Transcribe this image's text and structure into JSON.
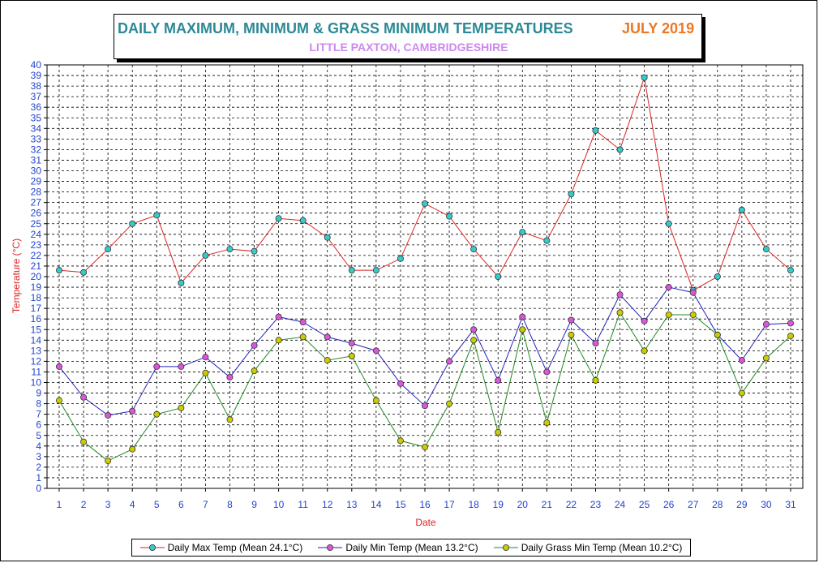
{
  "header": {
    "title": "DAILY MAXIMUM, MINIMUM & GRASS MINIMUM TEMPERATURES",
    "month": "JULY 2019",
    "location": "LITTLE PAXTON, CAMBRIDGESHIRE"
  },
  "colors": {
    "title": "#2b8a95",
    "month": "#ee7722",
    "location": "#cc88ee",
    "axis_text": "#2244cc",
    "axis_label": "#dd2222",
    "max_line": "#dd2222",
    "max_marker": "#33cccc",
    "min_line": "#2222bb",
    "min_marker": "#dd55dd",
    "grass_line": "#228822",
    "grass_marker": "#cccc00"
  },
  "chart_data": {
    "type": "line",
    "xlabel": "Date",
    "ylabel": "Temperature (°C)",
    "ylim": [
      0,
      40
    ],
    "xlim": [
      1,
      31
    ],
    "grid": true,
    "legend": "bottom",
    "x": [
      1,
      2,
      3,
      4,
      5,
      6,
      7,
      8,
      9,
      10,
      11,
      12,
      13,
      14,
      15,
      16,
      17,
      18,
      19,
      20,
      21,
      22,
      23,
      24,
      25,
      26,
      27,
      28,
      29,
      30,
      31
    ],
    "series": [
      {
        "name": "Daily Max Temp (Mean 24.1°C)",
        "values": [
          20.6,
          20.4,
          22.6,
          25.0,
          25.8,
          19.4,
          22.0,
          22.6,
          22.4,
          25.5,
          25.3,
          23.7,
          20.6,
          20.6,
          21.7,
          26.9,
          25.7,
          22.6,
          20.0,
          24.2,
          23.4,
          27.8,
          33.8,
          32.0,
          38.8,
          25.0,
          18.7,
          20.0,
          26.3,
          22.6,
          20.6
        ]
      },
      {
        "name": "Daily Min Temp (Mean 13.2°C)",
        "values": [
          11.5,
          8.6,
          6.9,
          7.3,
          11.5,
          11.5,
          12.4,
          10.5,
          13.5,
          16.2,
          15.7,
          14.3,
          13.7,
          13.0,
          9.9,
          7.8,
          12.0,
          15.0,
          10.2,
          16.2,
          11.0,
          15.9,
          13.7,
          18.3,
          15.8,
          19.0,
          18.5,
          14.5,
          12.1,
          15.5,
          15.6
        ]
      },
      {
        "name": "Daily Grass Min Temp (Mean 10.2°C)",
        "values": [
          8.3,
          4.4,
          2.6,
          3.7,
          7.0,
          7.6,
          10.9,
          6.5,
          11.1,
          14.0,
          14.3,
          12.1,
          12.5,
          8.3,
          4.5,
          3.9,
          8.0,
          14.0,
          5.3,
          15.0,
          6.2,
          14.5,
          10.2,
          16.6,
          13.0,
          16.4,
          16.4,
          14.5,
          9.0,
          12.3,
          14.4
        ]
      }
    ]
  }
}
